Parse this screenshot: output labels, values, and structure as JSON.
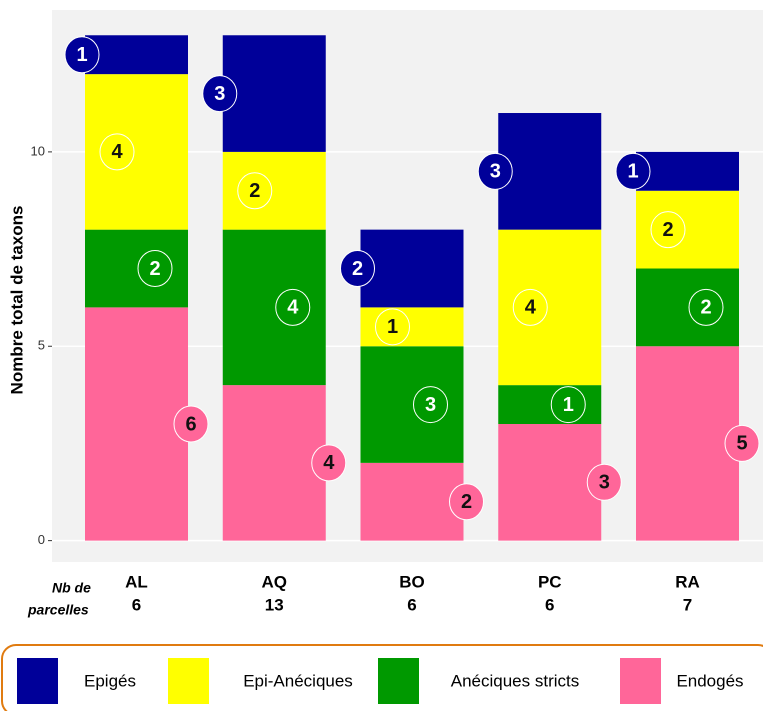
{
  "chart_data": {
    "type": "stacked_bar",
    "y_label": "Nombre total de taxons",
    "x_label": [
      "Nb de",
      "parcelles"
    ],
    "categories": [
      "AL",
      "AQ",
      "BO",
      "PC",
      "RA"
    ],
    "parcel_counts": [
      6,
      13,
      6,
      6,
      7
    ],
    "series": [
      {
        "name": "Endogés",
        "color": "#ff6699",
        "values": [
          6,
          4,
          2,
          3,
          5
        ]
      },
      {
        "name": "Anéciques stricts",
        "color": "#009900",
        "values": [
          2,
          4,
          3,
          1,
          2
        ]
      },
      {
        "name": "Epi-Anéciques",
        "color": "#ffff00",
        "values": [
          4,
          2,
          1,
          4,
          2
        ]
      },
      {
        "name": "Epigés",
        "color": "#000099",
        "values": [
          1,
          3,
          2,
          3,
          1
        ]
      }
    ],
    "ylim": [
      -0.55,
      13.65
    ],
    "yticks": [
      0,
      5,
      10
    ],
    "grid": true
  }
}
